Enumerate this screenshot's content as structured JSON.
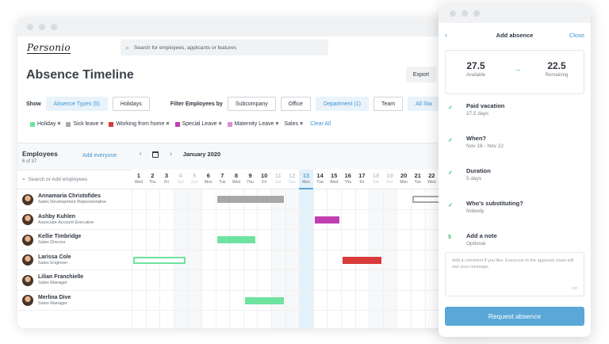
{
  "app": {
    "logo": "Personio"
  },
  "search": {
    "placeholder": "Search for employees, applicants or features"
  },
  "header": {
    "title": "Absence Timeline",
    "export_label": "Export"
  },
  "filters": {
    "show_label": "Show",
    "absence_types": "Absence Types (5)",
    "holidays": "Holidays",
    "filter_by_label": "Filter Employees by",
    "subcompany": "Subcompany",
    "office": "Office",
    "department": "Department (1)",
    "team": "Team",
    "status": "All Sta"
  },
  "tags": [
    {
      "label": "Holiday",
      "color": "#6ee3a0"
    },
    {
      "label": "Sick leave",
      "color": "#a8a8a8"
    },
    {
      "label": "Working from home",
      "color": "#d93a3a"
    },
    {
      "label": "Special Leave",
      "color": "#c03fb0"
    },
    {
      "label": "Maternity Leave",
      "color": "#d890d8"
    },
    {
      "label": "Sales",
      "color": ""
    }
  ],
  "tags_clear": "Clear All",
  "timeline": {
    "employees_title": "Employees",
    "employees_count": "6 of 37",
    "add_everyone": "Add everyone",
    "month": "January 2020",
    "search_placeholder": "Search or Add employees",
    "days": [
      {
        "num": "1",
        "wd": "Wed",
        "weekend": false
      },
      {
        "num": "2",
        "wd": "Thu",
        "weekend": false
      },
      {
        "num": "3",
        "wd": "Fri",
        "weekend": false
      },
      {
        "num": "4",
        "wd": "Sat",
        "weekend": true
      },
      {
        "num": "5",
        "wd": "Sun",
        "weekend": true
      },
      {
        "num": "6",
        "wd": "Mon",
        "weekend": false
      },
      {
        "num": "7",
        "wd": "Tue",
        "weekend": false
      },
      {
        "num": "8",
        "wd": "Wed",
        "weekend": false
      },
      {
        "num": "9",
        "wd": "Thu",
        "weekend": false
      },
      {
        "num": "10",
        "wd": "Fri",
        "weekend": false
      },
      {
        "num": "11",
        "wd": "Sat",
        "weekend": true
      },
      {
        "num": "12",
        "wd": "Sun",
        "weekend": true
      },
      {
        "num": "13",
        "wd": "Mon",
        "weekend": false,
        "today": true
      },
      {
        "num": "14",
        "wd": "Tue",
        "weekend": false
      },
      {
        "num": "15",
        "wd": "Wed",
        "weekend": false
      },
      {
        "num": "16",
        "wd": "Thu",
        "weekend": false
      },
      {
        "num": "17",
        "wd": "Fri",
        "weekend": false
      },
      {
        "num": "18",
        "wd": "Sat",
        "weekend": true
      },
      {
        "num": "19",
        "wd": "Sun",
        "weekend": true
      },
      {
        "num": "20",
        "wd": "Mon",
        "weekend": false
      },
      {
        "num": "21",
        "wd": "Tue",
        "weekend": false
      },
      {
        "num": "22",
        "wd": "Wed",
        "weekend": false
      }
    ],
    "employees": [
      {
        "name": "Annamaria Christofides",
        "role": "Sales Development Representative"
      },
      {
        "name": "Ashby Kuhlen",
        "role": "Associate Account Executive"
      },
      {
        "name": "Kellie Timbridge",
        "role": "Sales Director"
      },
      {
        "name": "Larissa Cole",
        "role": "Sales Engineer"
      },
      {
        "name": "Lilian Franchielle",
        "role": "Sales Manager"
      },
      {
        "name": "Merlina Dive",
        "role": "Sales Manager"
      }
    ],
    "absences": [
      {
        "row": 0,
        "start": 6,
        "end": 10,
        "color": "#a8a8a8",
        "style": "solid"
      },
      {
        "row": 0,
        "start": 20,
        "end": 22,
        "color": "#a8a8a8",
        "style": "outline"
      },
      {
        "row": 1,
        "start": 13,
        "end": 14,
        "color": "#c03fb0",
        "style": "solid"
      },
      {
        "row": 2,
        "start": 6,
        "end": 8,
        "color": "#6ee3a0",
        "style": "solid"
      },
      {
        "row": 3,
        "start": 0,
        "end": 3,
        "color": "#6ee3a0",
        "style": "outline"
      },
      {
        "row": 3,
        "start": 15,
        "end": 17,
        "color": "#d93a3a",
        "style": "solid"
      },
      {
        "row": 5,
        "start": 8,
        "end": 10,
        "color": "#6ee3a0",
        "style": "solid"
      }
    ]
  },
  "panel": {
    "back_icon": "chevron-left-icon",
    "title": "Add absence",
    "close": "Close",
    "available_value": "27.5",
    "available_label": "Available",
    "remaining_value": "22.5",
    "remaining_label": "Remaining",
    "steps": [
      {
        "icon": "✓",
        "title": "Paid vacation",
        "sub": "27.5 days"
      },
      {
        "icon": "✓",
        "title": "When?",
        "sub": "Nov 18 - Nov 22"
      },
      {
        "icon": "✓",
        "title": "Duration",
        "sub": "5 days"
      },
      {
        "icon": "✓",
        "title": "Who's substituting?",
        "sub": "Nobody"
      },
      {
        "icon": "5",
        "title": "Add a note",
        "sub": "Optional"
      }
    ],
    "comment_placeholder": "Add a comment if you like. Everyone in the approval chain will see your message.",
    "comment_count": "200",
    "request_label": "Request absence"
  }
}
